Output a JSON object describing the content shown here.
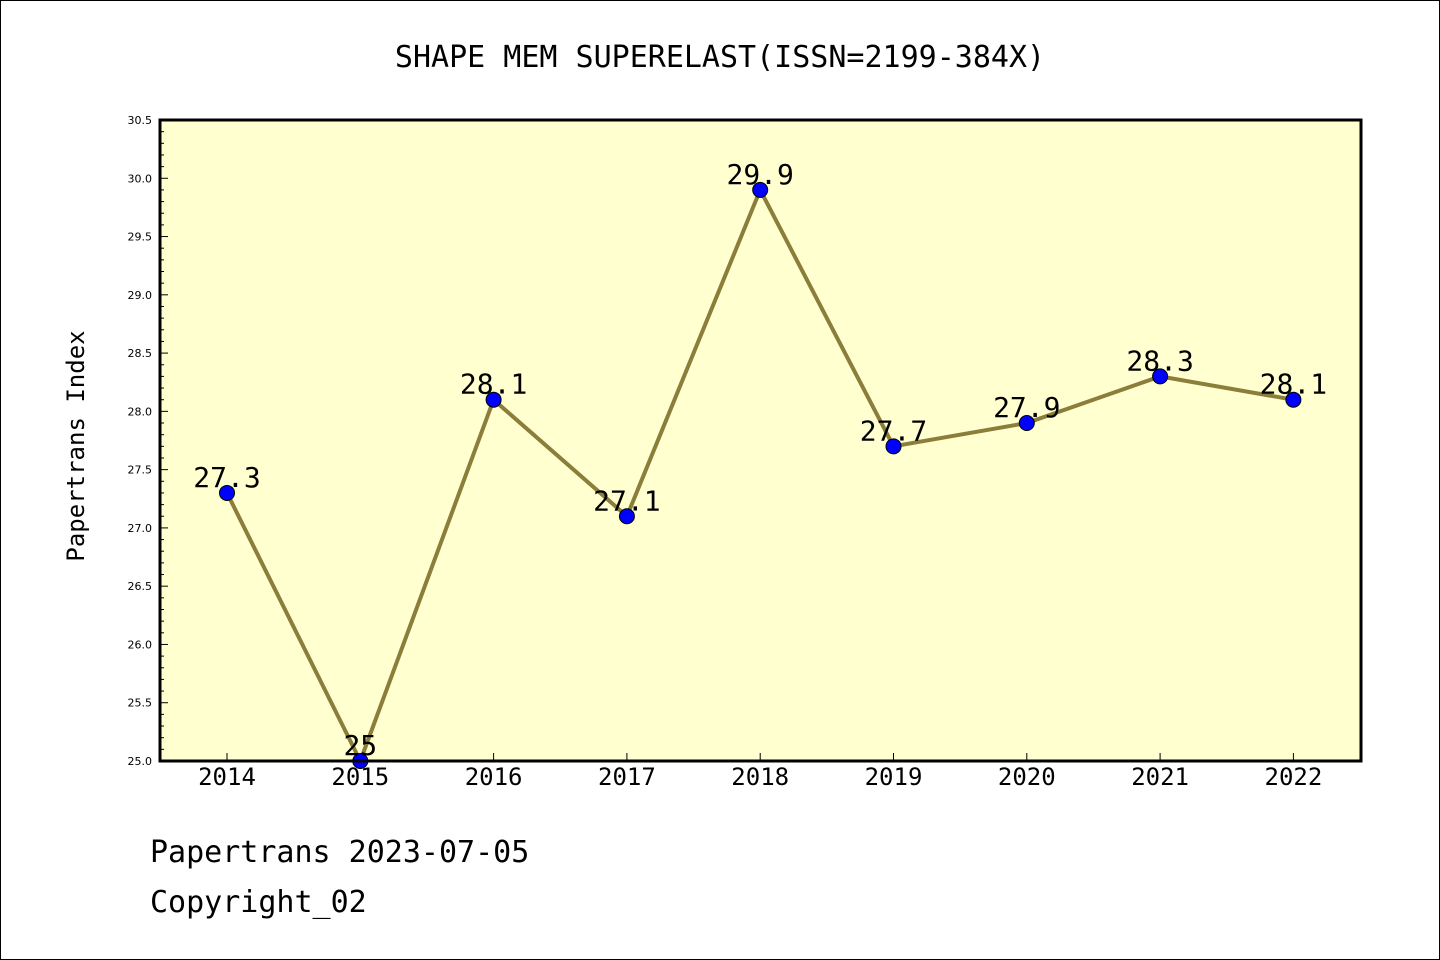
{
  "chart_data": {
    "type": "line",
    "title": "SHAPE MEM SUPERELAST(ISSN=2199-384X)",
    "xlabel": "",
    "ylabel": "Papertrans Index",
    "categories": [
      "2014",
      "2015",
      "2016",
      "2017",
      "2018",
      "2019",
      "2020",
      "2021",
      "2022"
    ],
    "values": [
      27.3,
      25,
      28.1,
      27.1,
      29.9,
      27.7,
      27.9,
      28.3,
      28.1
    ],
    "value_labels": [
      "27.3",
      "25",
      "28.1",
      "27.1",
      "29.9",
      "27.7",
      "27.9",
      "28.3",
      "28.1"
    ],
    "ylim": [
      25.0,
      30.5
    ],
    "yticks": [
      "25.0",
      "25.5",
      "26.0",
      "26.5",
      "27.0",
      "27.5",
      "28.0",
      "28.5",
      "29.0",
      "29.5",
      "30.0",
      "30.5"
    ],
    "grid": false,
    "colors": {
      "plot_background": "#ffffd0",
      "line": "#8b7d3a",
      "marker": "#0000ff"
    }
  },
  "footer": {
    "line1": "Papertrans 2023-07-05",
    "line2": "Copyright_02"
  }
}
